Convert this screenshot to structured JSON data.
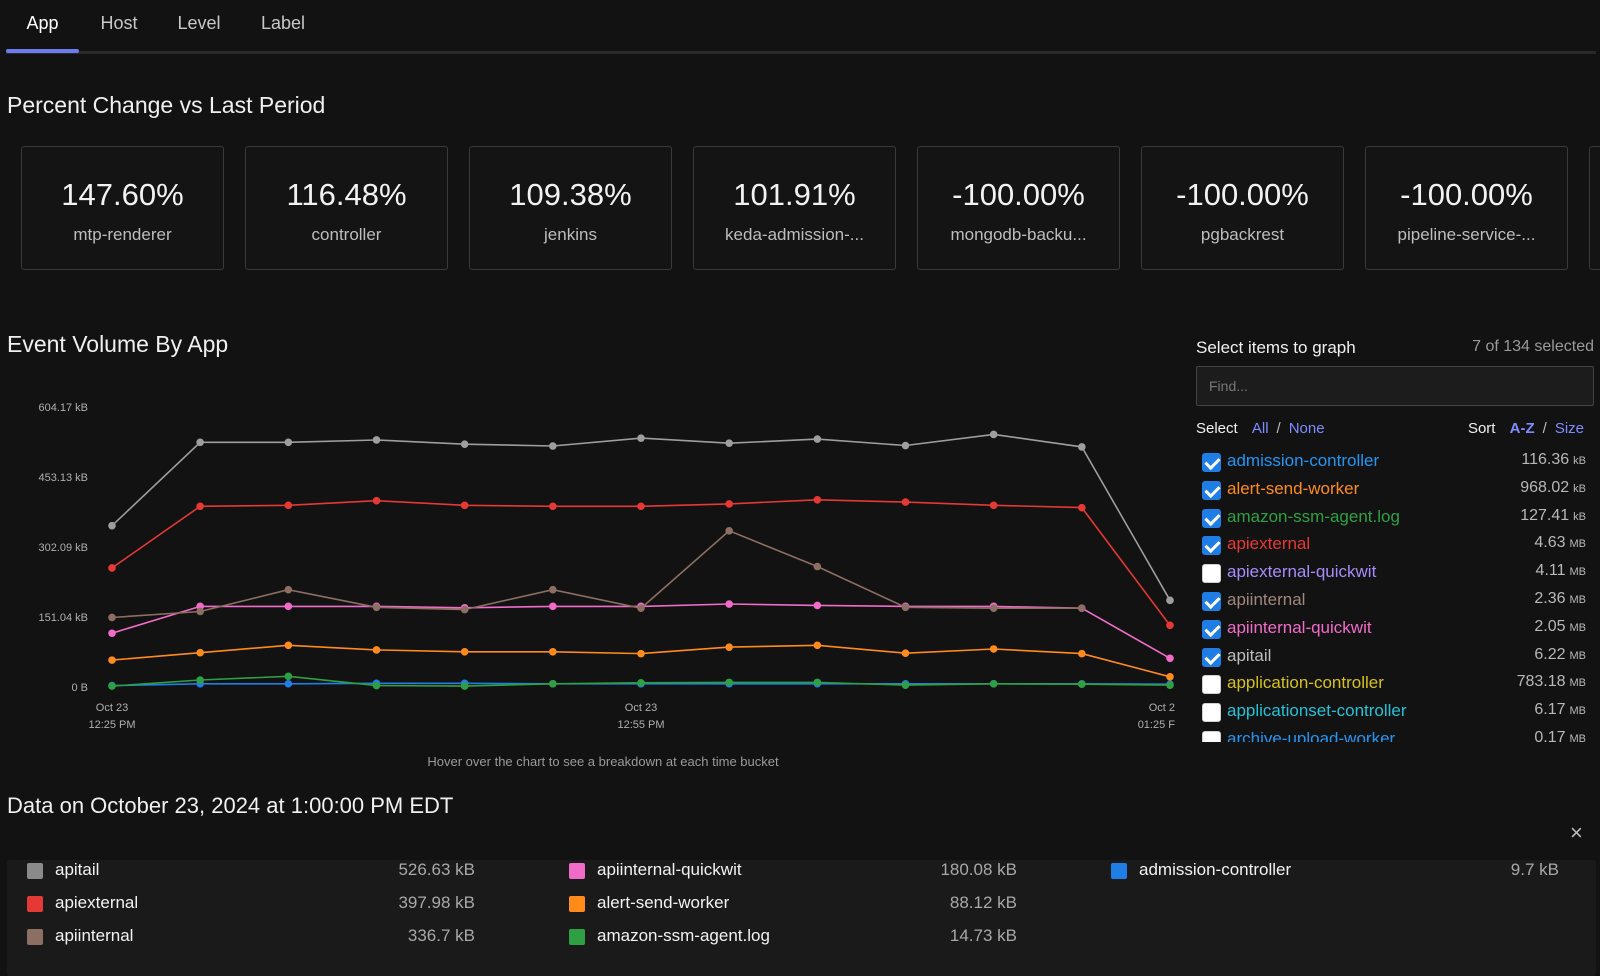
{
  "tabs": [
    {
      "label": "App",
      "active": true
    },
    {
      "label": "Host",
      "active": false
    },
    {
      "label": "Level",
      "active": false
    },
    {
      "label": "Label",
      "active": false
    }
  ],
  "percent_section": {
    "title": "Percent Change vs Last Period",
    "cards": [
      {
        "value": "147.60%",
        "name": "mtp-renderer"
      },
      {
        "value": "116.48%",
        "name": "controller"
      },
      {
        "value": "109.38%",
        "name": "jenkins"
      },
      {
        "value": "101.91%",
        "name": "keda-admission-..."
      },
      {
        "value": "-100.00%",
        "name": "mongodb-backu..."
      },
      {
        "value": "-100.00%",
        "name": "pgbackrest"
      },
      {
        "value": "-100.00%",
        "name": "pipeline-service-..."
      }
    ]
  },
  "chart_section": {
    "title": "Event Volume By App",
    "hint": "Hover over the chart to see a breakdown at each time bucket"
  },
  "chart_data": {
    "type": "line",
    "y_ticks": [
      "0 B",
      "151.04 kB",
      "302.09 kB",
      "453.13 kB",
      "604.17 kB"
    ],
    "ylim": [
      0,
      604.17
    ],
    "y_unit": "kB",
    "x_ticks": [
      {
        "index": 0,
        "line1": "Oct 23",
        "line2": "12:25 PM"
      },
      {
        "index": 6,
        "line1": "Oct 23",
        "line2": "12:55 PM"
      },
      {
        "index": 12,
        "line1": "Oct 2",
        "line2": "01:25 F"
      }
    ],
    "x_count": 13,
    "series": [
      {
        "color": "#9e9e9e",
        "values": [
          348,
          528,
          528,
          533,
          524,
          520,
          537,
          526,
          535,
          521,
          545,
          518,
          187
        ]
      },
      {
        "color": "#e53935",
        "values": [
          257,
          390,
          392,
          402,
          392,
          390,
          390,
          395,
          404,
          399,
          392,
          387,
          133
        ]
      },
      {
        "color": "#8d6e63",
        "values": [
          150,
          163,
          210,
          172,
          167,
          210,
          170,
          337,
          260,
          172,
          170,
          170,
          null
        ]
      },
      {
        "color": "#f06cc8",
        "values": [
          116,
          174,
          174,
          174,
          171,
          174,
          174,
          179,
          176,
          174,
          174,
          170,
          62
        ]
      },
      {
        "color": "#ff8c1a",
        "values": [
          58,
          74,
          90,
          80,
          76,
          76,
          72,
          86,
          90,
          73,
          82,
          72,
          22
        ]
      },
      {
        "color": "#2ea043",
        "values": [
          2,
          15,
          23,
          3,
          2,
          7,
          9,
          10,
          10,
          4,
          7,
          6,
          4
        ]
      },
      {
        "color": "#1e7ee6",
        "values": [
          3,
          7,
          7,
          8,
          8,
          7,
          7,
          7,
          7,
          7,
          7,
          7,
          6
        ]
      }
    ]
  },
  "select_panel": {
    "title": "Select items to graph",
    "count": "7 of 134 selected",
    "find_placeholder": "Find...",
    "select_label": "Select",
    "select_all": "All",
    "select_none": "None",
    "sort_label": "Sort",
    "sort_az": "A-Z",
    "sort_size": "Size",
    "slash": "/",
    "items": [
      {
        "name": "admission-controller",
        "color": "#2196f3",
        "checked": true,
        "size": "116.36",
        "unit": "kB"
      },
      {
        "name": "alert-send-worker",
        "color": "#ff8c1a",
        "checked": true,
        "size": "968.02",
        "unit": "kB"
      },
      {
        "name": "amazon-ssm-agent.log",
        "color": "#2ea043",
        "checked": true,
        "size": "127.41",
        "unit": "kB"
      },
      {
        "name": "apiexternal",
        "color": "#e53935",
        "checked": true,
        "size": "4.63",
        "unit": "MB"
      },
      {
        "name": "apiexternal-quickwit",
        "color": "#a78bfa",
        "checked": false,
        "size": "4.11",
        "unit": "MB"
      },
      {
        "name": "apiinternal",
        "color": "#a1887f",
        "checked": true,
        "size": "2.36",
        "unit": "MB"
      },
      {
        "name": "apiinternal-quickwit",
        "color": "#f06cc8",
        "checked": true,
        "size": "2.05",
        "unit": "MB"
      },
      {
        "name": "apitail",
        "color": "#bdbdbd",
        "checked": true,
        "size": "6.22",
        "unit": "MB"
      },
      {
        "name": "application-controller",
        "color": "#d4c21a",
        "checked": false,
        "size": "783.18",
        "unit": "MB"
      },
      {
        "name": "applicationset-controller",
        "color": "#22c3d6",
        "checked": false,
        "size": "6.17",
        "unit": "MB"
      },
      {
        "name": "archive-upload-worker",
        "color": "#2196f3",
        "checked": false,
        "size": "0.17",
        "unit": "MB"
      }
    ]
  },
  "data_section": {
    "title": "Data on October 23, 2024 at 1:00:00 PM EDT",
    "close_icon": "×",
    "rows": [
      {
        "name": "apitail",
        "value": "526.63 kB",
        "color": "#8a8a8a"
      },
      {
        "name": "apiexternal",
        "value": "397.98 kB",
        "color": "#e53935"
      },
      {
        "name": "apiinternal",
        "value": "336.7 kB",
        "color": "#8d6e63"
      },
      {
        "name": "apiinternal-quickwit",
        "value": "180.08 kB",
        "color": "#f06cc8"
      },
      {
        "name": "alert-send-worker",
        "value": "88.12 kB",
        "color": "#ff8c1a"
      },
      {
        "name": "amazon-ssm-agent.log",
        "value": "14.73 kB",
        "color": "#2ea043"
      },
      {
        "name": "admission-controller",
        "value": "9.7 kB",
        "color": "#1e7ee6"
      }
    ]
  }
}
